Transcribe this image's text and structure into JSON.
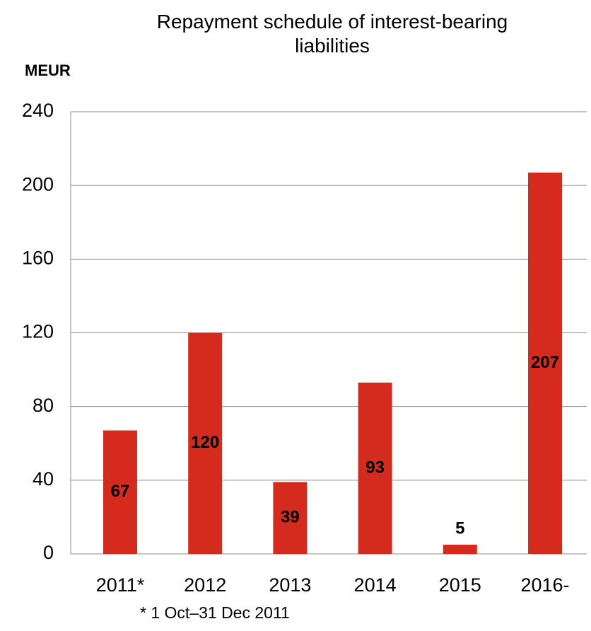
{
  "chart_data": {
    "type": "bar",
    "title": "Repayment schedule of interest-bearing liabilities",
    "ylabel": "MEUR",
    "footnote": "* 1 Oct–31 Dec 2011",
    "categories": [
      "2011*",
      "2012",
      "2013",
      "2014",
      "2015",
      "2016-"
    ],
    "values": [
      67,
      120,
      39,
      93,
      5,
      207
    ],
    "color": "#d52b1e",
    "ylim": [
      0,
      240
    ],
    "yticks": [
      0,
      40,
      80,
      120,
      160,
      200,
      240
    ],
    "grid": true
  }
}
